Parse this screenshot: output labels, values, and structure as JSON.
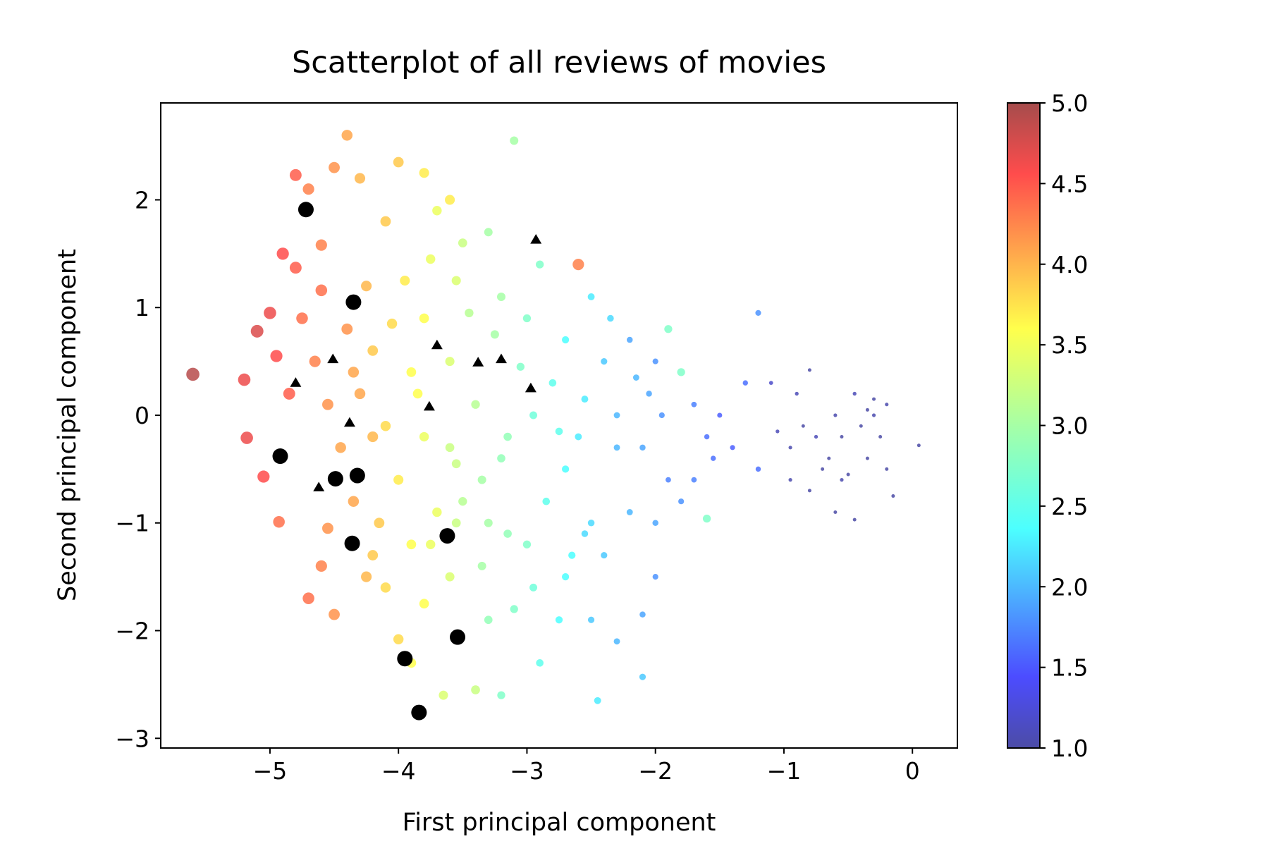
{
  "chart_data": {
    "type": "scatter",
    "title": "Scatterplot of all reviews of movies",
    "xlabel": "First principal component",
    "ylabel": "Second principal component",
    "xlim": [
      -5.85,
      0.35
    ],
    "ylim": [
      -3.09,
      2.9
    ],
    "xticks": [
      -5,
      -4,
      -3,
      -2,
      -1,
      0
    ],
    "yticks": [
      -3,
      -2,
      -1,
      0,
      1,
      2
    ],
    "xtick_labels": [
      "−5",
      "−4",
      "−3",
      "−2",
      "−1",
      "0"
    ],
    "ytick_labels": [
      "−3",
      "−2",
      "−1",
      "0",
      "1",
      "2"
    ],
    "grid": false,
    "colorbar": {
      "colormap": "jet",
      "range": [
        1.0,
        5.0
      ],
      "ticks": [
        1.0,
        1.5,
        2.0,
        2.5,
        3.0,
        3.5,
        4.0,
        4.5,
        5.0
      ],
      "tick_labels": [
        "1.0",
        "1.5",
        "2.0",
        "2.5",
        "3.0",
        "3.5",
        "4.0",
        "4.5",
        "5.0"
      ]
    },
    "series": [
      {
        "marker": "circle-colored",
        "points": [
          [
            -5.6,
            0.38,
            4.9
          ],
          [
            -5.2,
            0.33,
            4.6
          ],
          [
            -5.18,
            -0.21,
            4.6
          ],
          [
            -5.05,
            -0.57,
            4.5
          ],
          [
            -5.1,
            0.78,
            4.7
          ],
          [
            -5.0,
            0.95,
            4.6
          ],
          [
            -4.93,
            -0.99,
            4.3
          ],
          [
            -4.8,
            2.23,
            4.4
          ],
          [
            -4.7,
            2.1,
            4.2
          ],
          [
            -4.6,
            1.58,
            4.2
          ],
          [
            -4.9,
            1.5,
            4.5
          ],
          [
            -4.8,
            1.37,
            4.4
          ],
          [
            -4.6,
            1.16,
            4.3
          ],
          [
            -4.5,
            2.3,
            4.1
          ],
          [
            -4.4,
            2.6,
            4.0
          ],
          [
            -4.3,
            2.2,
            3.9
          ],
          [
            -4.4,
            0.8,
            4.1
          ],
          [
            -4.3,
            0.2,
            4.0
          ],
          [
            -4.2,
            -0.2,
            3.9
          ],
          [
            -4.7,
            -1.7,
            4.3
          ],
          [
            -4.5,
            -1.85,
            4.1
          ],
          [
            -4.6,
            -1.4,
            4.2
          ],
          [
            -4.2,
            -1.3,
            3.8
          ],
          [
            -4.0,
            2.35,
            3.8
          ],
          [
            -3.8,
            2.25,
            3.6
          ],
          [
            -3.7,
            1.9,
            3.4
          ],
          [
            -3.6,
            2.0,
            3.6
          ],
          [
            -3.5,
            1.6,
            3.2
          ],
          [
            -3.3,
            1.7,
            3.0
          ],
          [
            -3.1,
            2.55,
            3.0
          ],
          [
            -3.2,
            1.1,
            3.0
          ],
          [
            -3.0,
            0.9,
            2.8
          ],
          [
            -2.9,
            1.4,
            2.8
          ],
          [
            -2.6,
            1.4,
            4.2
          ],
          [
            -2.5,
            1.1,
            2.4
          ],
          [
            -2.7,
            0.7,
            2.5
          ],
          [
            -2.8,
            0.3,
            2.6
          ],
          [
            -2.6,
            -0.2,
            2.4
          ],
          [
            -2.4,
            0.5,
            2.2
          ],
          [
            -2.3,
            0.0,
            2.1
          ],
          [
            -2.1,
            -0.3,
            2.0
          ],
          [
            -2.2,
            0.7,
            2.0
          ],
          [
            -2.0,
            0.5,
            1.9
          ],
          [
            -1.9,
            0.8,
            2.8
          ],
          [
            -1.8,
            0.4,
            2.8
          ],
          [
            -1.7,
            0.1,
            1.8
          ],
          [
            -1.6,
            -0.2,
            1.7
          ],
          [
            -1.5,
            0.0,
            1.6
          ],
          [
            -1.4,
            -0.3,
            1.6
          ],
          [
            -1.3,
            0.3,
            1.7
          ],
          [
            -1.2,
            0.95,
            1.9
          ],
          [
            -1.2,
            -0.5,
            1.7
          ],
          [
            -1.6,
            -0.96,
            2.8
          ],
          [
            -1.8,
            -0.8,
            1.9
          ],
          [
            -2.0,
            -1.0,
            2.0
          ],
          [
            -2.2,
            -0.9,
            2.1
          ],
          [
            -2.0,
            -1.5,
            1.9
          ],
          [
            -2.1,
            -1.85,
            2.0
          ],
          [
            -2.3,
            -2.1,
            2.1
          ],
          [
            -2.5,
            -1.9,
            2.2
          ],
          [
            -2.45,
            -2.65,
            2.4
          ],
          [
            -2.1,
            -2.43,
            2.2
          ],
          [
            -2.5,
            -1.0,
            2.3
          ],
          [
            -2.7,
            -1.5,
            2.5
          ],
          [
            -2.9,
            -2.3,
            2.6
          ],
          [
            -3.2,
            -2.6,
            2.8
          ],
          [
            -3.3,
            -1.9,
            2.9
          ],
          [
            -3.4,
            -2.55,
            3.2
          ],
          [
            -3.1,
            -1.8,
            2.8
          ],
          [
            -3.0,
            -1.2,
            2.8
          ],
          [
            -3.3,
            -1.0,
            3.0
          ],
          [
            -3.5,
            -0.8,
            3.1
          ],
          [
            -3.2,
            -0.4,
            2.9
          ],
          [
            -3.6,
            -0.3,
            3.2
          ],
          [
            -3.4,
            0.1,
            3.1
          ],
          [
            -3.6,
            0.5,
            3.3
          ],
          [
            -3.8,
            0.9,
            3.5
          ],
          [
            -3.9,
            0.4,
            3.5
          ],
          [
            -3.8,
            -0.2,
            3.4
          ],
          [
            -4.0,
            -0.6,
            3.6
          ],
          [
            -3.9,
            -1.2,
            3.5
          ],
          [
            -4.1,
            -1.6,
            3.7
          ],
          [
            -3.8,
            -1.75,
            3.5
          ],
          [
            -3.6,
            -1.5,
            3.3
          ],
          [
            -3.65,
            -2.6,
            3.3
          ],
          [
            -4.0,
            -2.08,
            3.7
          ],
          [
            -3.9,
            -2.3,
            3.5
          ],
          [
            -4.15,
            -1.0,
            3.8
          ],
          [
            -4.25,
            1.2,
            3.9
          ],
          [
            -4.1,
            1.8,
            3.8
          ],
          [
            -4.2,
            0.6,
            3.8
          ],
          [
            -4.1,
            -0.1,
            3.7
          ],
          [
            -3.85,
            0.2,
            3.5
          ],
          [
            -3.7,
            -0.9,
            3.4
          ],
          [
            -2.95,
            0.0,
            2.7
          ],
          [
            -2.7,
            -0.5,
            2.5
          ],
          [
            -2.85,
            -0.8,
            2.6
          ],
          [
            -2.4,
            -1.3,
            2.2
          ],
          [
            -2.55,
            -1.1,
            2.3
          ],
          [
            -2.3,
            -0.3,
            2.1
          ],
          [
            -2.05,
            0.2,
            2.0
          ],
          [
            -1.9,
            -0.6,
            1.8
          ],
          [
            -1.7,
            -0.6,
            1.8
          ],
          [
            -1.55,
            -0.4,
            1.7
          ],
          [
            -1.05,
            -0.15,
            1.1
          ],
          [
            -0.95,
            -0.3,
            1.05
          ],
          [
            -0.85,
            -0.1,
            1.0
          ],
          [
            -0.8,
            0.42,
            1.0
          ],
          [
            -0.75,
            -0.2,
            1.1
          ],
          [
            -0.65,
            -0.4,
            1.0
          ],
          [
            -0.6,
            0.0,
            1.05
          ],
          [
            -0.55,
            -0.2,
            1.0
          ],
          [
            -0.5,
            -0.55,
            1.0
          ],
          [
            -0.45,
            0.2,
            1.1
          ],
          [
            -0.4,
            -0.1,
            1.0
          ],
          [
            -0.35,
            -0.4,
            1.0
          ],
          [
            -0.3,
            0.0,
            1.05
          ],
          [
            -0.25,
            -0.2,
            1.0
          ],
          [
            -0.2,
            -0.5,
            1.0
          ],
          [
            -0.15,
            -0.75,
            1.0
          ],
          [
            0.05,
            -0.28,
            1.0
          ],
          [
            -0.95,
            -0.6,
            1.05
          ],
          [
            -0.8,
            -0.7,
            1.0
          ],
          [
            -0.6,
            -0.9,
            1.0
          ],
          [
            -0.45,
            -0.97,
            1.0
          ],
          [
            -0.55,
            -0.6,
            1.05
          ],
          [
            -0.7,
            -0.5,
            1.0
          ],
          [
            -0.9,
            0.2,
            1.1
          ],
          [
            -1.1,
            0.3,
            1.2
          ],
          [
            -0.3,
            0.15,
            1.0
          ],
          [
            -0.2,
            0.1,
            1.05
          ],
          [
            -0.35,
            0.05,
            1.0
          ],
          [
            -4.45,
            -0.3,
            4.0
          ],
          [
            -4.55,
            0.1,
            4.1
          ],
          [
            -4.65,
            0.5,
            4.2
          ],
          [
            -4.75,
            0.9,
            4.3
          ],
          [
            -4.85,
            0.2,
            4.4
          ],
          [
            -4.95,
            0.55,
            4.5
          ],
          [
            -4.35,
            -0.8,
            4.0
          ],
          [
            -4.55,
            -1.05,
            4.1
          ],
          [
            -4.25,
            -1.5,
            3.9
          ],
          [
            -3.75,
            -1.2,
            3.4
          ],
          [
            -3.55,
            -1.0,
            3.2
          ],
          [
            -3.35,
            -1.4,
            3.0
          ],
          [
            -3.15,
            -1.1,
            2.9
          ],
          [
            -2.95,
            -1.6,
            2.7
          ],
          [
            -2.75,
            -1.9,
            2.5
          ],
          [
            -2.65,
            -1.3,
            2.5
          ],
          [
            -3.05,
            0.45,
            2.8
          ],
          [
            -3.25,
            0.75,
            3.0
          ],
          [
            -3.45,
            0.95,
            3.1
          ],
          [
            -3.55,
            1.25,
            3.3
          ],
          [
            -3.75,
            1.45,
            3.4
          ],
          [
            -3.95,
            1.25,
            3.6
          ],
          [
            -4.05,
            0.85,
            3.7
          ],
          [
            -4.35,
            0.4,
            4.0
          ],
          [
            -2.35,
            0.9,
            2.3
          ],
          [
            -2.15,
            0.35,
            2.1
          ],
          [
            -1.95,
            0.0,
            1.9
          ],
          [
            -2.55,
            0.15,
            2.4
          ],
          [
            -2.75,
            -0.15,
            2.6
          ],
          [
            -3.15,
            -0.2,
            2.9
          ],
          [
            -3.35,
            -0.6,
            3.0
          ],
          [
            -3.55,
            -0.45,
            3.2
          ]
        ]
      },
      {
        "marker": "black-circle",
        "points": [
          [
            -4.72,
            1.91
          ],
          [
            -4.35,
            1.05
          ],
          [
            -4.92,
            -0.38
          ],
          [
            -4.49,
            -0.59
          ],
          [
            -4.32,
            -0.56
          ],
          [
            -4.36,
            -1.19
          ],
          [
            -3.62,
            -1.12
          ],
          [
            -3.54,
            -2.06
          ],
          [
            -3.95,
            -2.26
          ],
          [
            -3.84,
            -2.76
          ]
        ]
      },
      {
        "marker": "black-triangle",
        "points": [
          [
            -2.93,
            1.63
          ],
          [
            -3.7,
            0.65
          ],
          [
            -3.38,
            0.49
          ],
          [
            -3.2,
            0.52
          ],
          [
            -4.51,
            0.52
          ],
          [
            -4.8,
            0.3
          ],
          [
            -2.97,
            0.25
          ],
          [
            -3.76,
            0.08
          ],
          [
            -4.38,
            -0.07
          ],
          [
            -4.62,
            -0.67
          ]
        ]
      }
    ]
  }
}
